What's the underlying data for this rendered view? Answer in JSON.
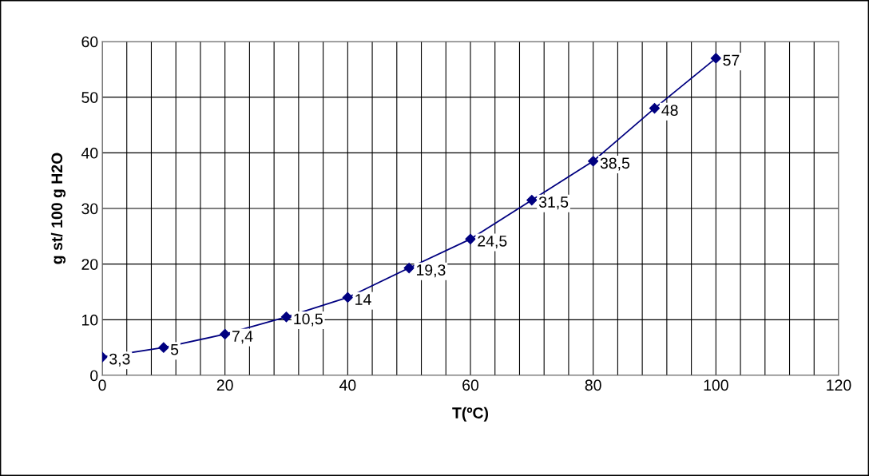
{
  "chart_data": {
    "type": "line",
    "xlabel": "T(ºC)",
    "ylabel": "g st/ 100 g H2O",
    "x": [
      0,
      10,
      20,
      30,
      40,
      50,
      60,
      70,
      80,
      90,
      100
    ],
    "series": [
      {
        "color": "#000080",
        "values": [
          3.3,
          5,
          7.4,
          10.5,
          14,
          19.3,
          24.5,
          31.5,
          38.5,
          48,
          57
        ],
        "value_labels": [
          "3,3",
          "5",
          "7,4",
          "10,5",
          "14",
          "19,3",
          "24,5",
          "31,5",
          "38,5",
          "48",
          "57"
        ]
      }
    ],
    "xlim": [
      0,
      120
    ],
    "xticks": [
      0,
      {
        "value": 4,
        "label": null
      },
      {
        "value": 8,
        "label": null
      },
      {
        "value": 12,
        "label": null
      },
      {
        "value": 16,
        "label": null
      },
      20,
      {
        "value": 24,
        "label": null
      },
      {
        "value": 28,
        "label": null
      },
      {
        "value": 32,
        "label": null
      },
      {
        "value": 36,
        "label": null
      },
      40,
      {
        "value": 44,
        "label": null
      },
      {
        "value": 48,
        "label": null
      },
      {
        "value": 52,
        "label": null
      },
      {
        "value": 56,
        "label": null
      },
      60,
      {
        "value": 64,
        "label": null
      },
      {
        "value": 68,
        "label": null
      },
      {
        "value": 72,
        "label": null
      },
      {
        "value": 76,
        "label": null
      },
      80,
      {
        "value": 84,
        "label": null
      },
      {
        "value": 88,
        "label": null
      },
      {
        "value": 92,
        "label": null
      },
      {
        "value": 96,
        "label": null
      },
      100,
      {
        "value": 104,
        "label": null
      },
      {
        "value": 108,
        "label": null
      },
      {
        "value": 112,
        "label": null
      },
      {
        "value": 116,
        "label": null
      },
      120
    ],
    "ylim": [
      0,
      60
    ],
    "yticks": [
      0,
      10,
      20,
      30,
      40,
      50,
      60
    ],
    "grid": true,
    "legend": false,
    "marker": "diamond",
    "line_style": "solid"
  }
}
